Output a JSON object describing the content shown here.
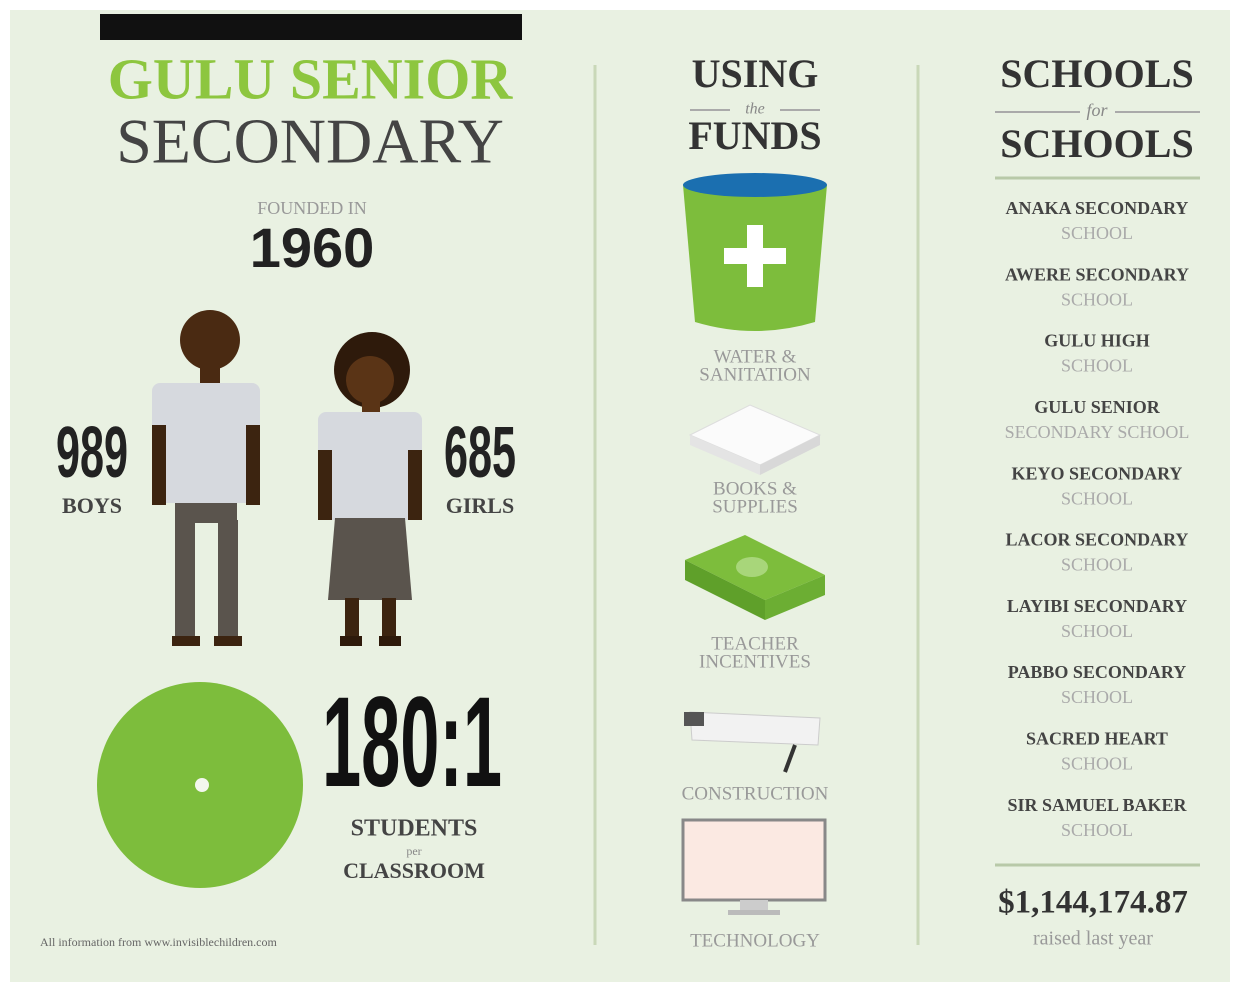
{
  "header": {
    "title_line1": "GULU SENIOR",
    "title_line2": "SECONDARY"
  },
  "founded": {
    "label": "FOUNDED IN",
    "year": "1960"
  },
  "students": {
    "boys": {
      "count": "989",
      "label": "BOYS"
    },
    "girls": {
      "count": "685",
      "label": "GIRLS"
    }
  },
  "ratio": {
    "value": "180:1",
    "line1": "STUDENTS",
    "connector": "per",
    "line2": "CLASSROOM"
  },
  "footnote": "All information from www.invisiblechildren.com",
  "funds": {
    "heading1": "USING",
    "connector": "the",
    "heading2": "FUNDS",
    "items": [
      {
        "lines": [
          "WATER &",
          "SANITATION"
        ]
      },
      {
        "lines": [
          "BOOKS &",
          "SUPPLIES"
        ]
      },
      {
        "lines": [
          "TEACHER",
          "INCENTIVES"
        ]
      },
      {
        "lines": [
          "CONSTRUCTION"
        ]
      },
      {
        "lines": [
          "TECHNOLOGY"
        ]
      }
    ]
  },
  "schools": {
    "heading1": "SCHOOLS",
    "connector": "for",
    "heading2": "SCHOOLS",
    "list": [
      {
        "name": "ANAKA SECONDARY",
        "sub": "SCHOOL"
      },
      {
        "name": "AWERE SECONDARY",
        "sub": "SCHOOL"
      },
      {
        "name": "GULU HIGH",
        "sub": "SCHOOL"
      },
      {
        "name": "GULU SENIOR",
        "sub": "SECONDARY SCHOOL"
      },
      {
        "name": "KEYO SECONDARY",
        "sub": "SCHOOL"
      },
      {
        "name": "LACOR SECONDARY",
        "sub": "SCHOOL"
      },
      {
        "name": "LAYIBI SECONDARY",
        "sub": "SCHOOL"
      },
      {
        "name": "PABBO SECONDARY",
        "sub": "SCHOOL"
      },
      {
        "name": "SACRED HEART",
        "sub": "SCHOOL"
      },
      {
        "name": "SIR SAMUEL BAKER",
        "sub": "SCHOOL"
      }
    ],
    "total": "$1,144,174.87",
    "total_label": "raised last year"
  }
}
